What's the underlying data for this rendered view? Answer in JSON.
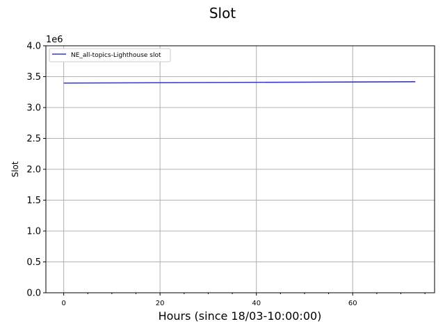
{
  "chart_data": {
    "type": "line",
    "title": "Slot",
    "xlabel": "Hours (since 18/03-10:00:00)",
    "ylabel": "Slot",
    "y_offset_label": "1e6",
    "xlim": [
      -3.7,
      77
    ],
    "ylim": [
      0,
      4.0
    ],
    "x_ticks": [
      0,
      20,
      40,
      60
    ],
    "x_tick_labels": [
      "0",
      "20",
      "40",
      "60"
    ],
    "x_minor_ticks": [
      5,
      10,
      15,
      25,
      30,
      35,
      45,
      50,
      55,
      65,
      70,
      75
    ],
    "y_ticks": [
      0,
      0.5,
      1.0,
      1.5,
      2.0,
      2.5,
      3.0,
      3.5,
      4.0
    ],
    "y_tick_labels": [
      "0.0",
      "0.5",
      "1.0",
      "1.5",
      "2.0",
      "2.5",
      "3.0",
      "3.5",
      "4.0"
    ],
    "grid": true,
    "legend_position": "top-left",
    "series": [
      {
        "name": "NE_all-topics-Lighthouse slot",
        "color": "#3333dd",
        "x": [
          0,
          73
        ],
        "y": [
          3.396,
          3.418
        ]
      }
    ]
  }
}
